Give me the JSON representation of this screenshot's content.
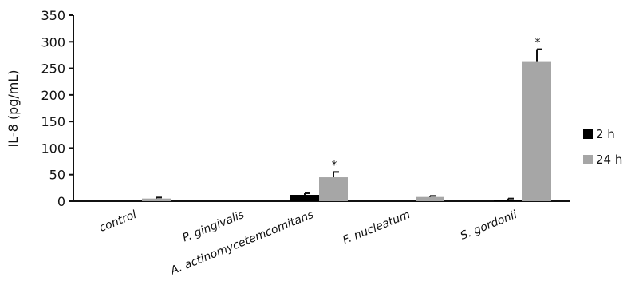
{
  "chart_data": {
    "type": "bar",
    "ylabel": "IL-8 (pg/mL)",
    "ylim": [
      0,
      350
    ],
    "yticks": [
      0,
      50,
      100,
      150,
      200,
      250,
      300,
      350
    ],
    "grid": false,
    "legend_position": "right",
    "categories": [
      "control",
      "P. gingivalis",
      "A. actinomycetemcomitans",
      "F. nucleatum",
      "S. gordonii"
    ],
    "series": [
      {
        "name": "2 h",
        "color": "#000000",
        "values": [
          0,
          0,
          12,
          0,
          3
        ],
        "errors": [
          0,
          0,
          3,
          0,
          2
        ]
      },
      {
        "name": "24 h",
        "color": "#a6a6a6",
        "values": [
          5,
          0,
          45,
          8,
          262
        ],
        "errors": [
          2,
          0,
          10,
          2,
          24
        ]
      }
    ],
    "annotations": [
      {
        "category": "A. actinomycetemcomitans",
        "series": "24 h",
        "text": "*"
      },
      {
        "category": "S. gordonii",
        "series": "24 h",
        "text": "*"
      }
    ]
  }
}
